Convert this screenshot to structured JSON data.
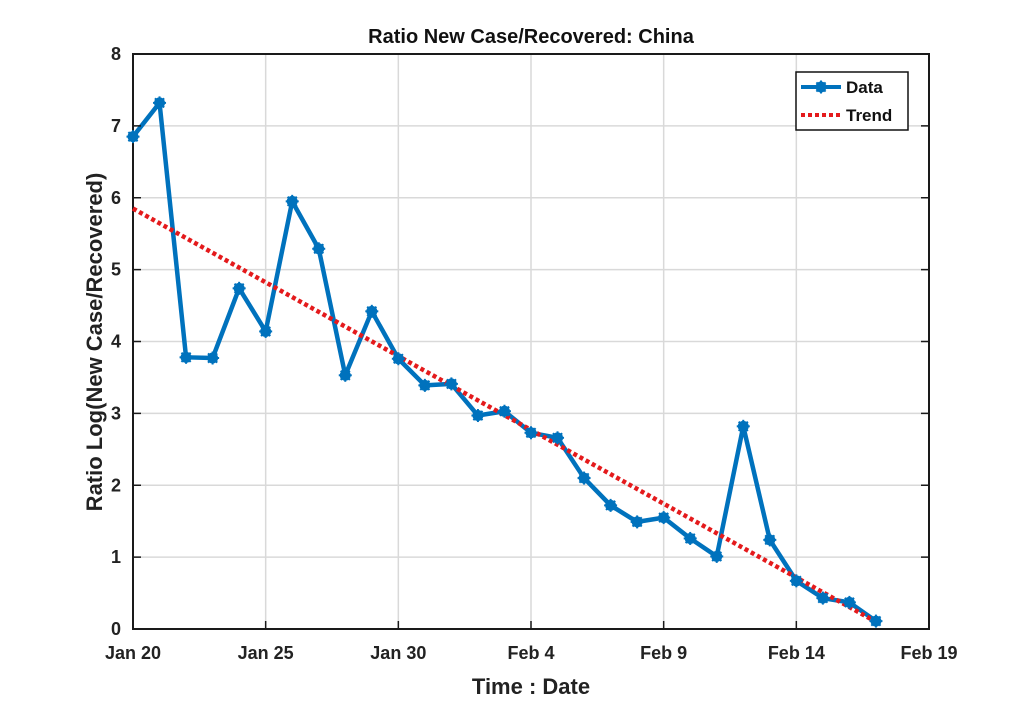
{
  "chart_data": {
    "type": "line",
    "title": "Ratio New Case/Recovered: China",
    "xlabel": "Time : Date",
    "ylabel": "Ratio Log(New Case/Recovered)",
    "x_tick_labels": [
      "Jan 20",
      "Jan 25",
      "Jan 30",
      "Feb 4",
      "Feb 9",
      "Feb 14",
      "Feb 19"
    ],
    "y_ticks": [
      0,
      1,
      2,
      3,
      4,
      5,
      6,
      7,
      8
    ],
    "ylim": [
      0,
      8
    ],
    "xlim": [
      "2020-01-20",
      "2020-02-19"
    ],
    "grid": true,
    "legend_position": "top-right",
    "series": [
      {
        "name": "Data",
        "style": "solid line with star markers",
        "color": "#0072BD",
        "x": [
          "2020-01-20",
          "2020-01-21",
          "2020-01-22",
          "2020-01-23",
          "2020-01-24",
          "2020-01-25",
          "2020-01-26",
          "2020-01-27",
          "2020-01-28",
          "2020-01-29",
          "2020-01-30",
          "2020-01-31",
          "2020-02-01",
          "2020-02-02",
          "2020-02-03",
          "2020-02-04",
          "2020-02-05",
          "2020-02-06",
          "2020-02-07",
          "2020-02-08",
          "2020-02-09",
          "2020-02-10",
          "2020-02-11",
          "2020-02-12",
          "2020-02-13",
          "2020-02-14",
          "2020-02-15",
          "2020-02-16",
          "2020-02-17"
        ],
        "y": [
          6.85,
          7.32,
          3.78,
          3.77,
          4.74,
          4.14,
          5.95,
          5.29,
          3.53,
          4.42,
          3.76,
          3.39,
          3.41,
          2.97,
          3.03,
          2.73,
          2.66,
          2.1,
          1.72,
          1.49,
          1.55,
          1.26,
          1.01,
          2.82,
          1.24,
          0.67,
          0.43,
          0.37,
          0.11
        ]
      },
      {
        "name": "Trend",
        "style": "dotted line",
        "color": "#E41A1C",
        "x": [
          "2020-01-20",
          "2020-02-17"
        ],
        "y": [
          5.85,
          0.1
        ]
      }
    ]
  }
}
